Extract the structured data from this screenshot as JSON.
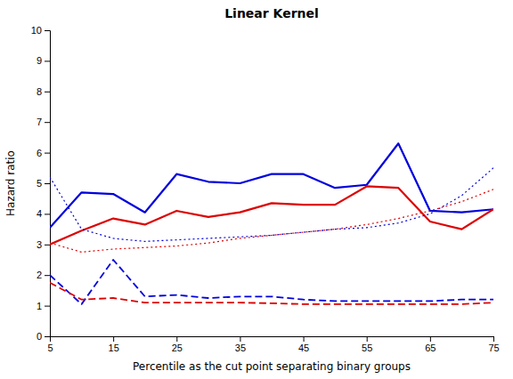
{
  "chart_data": {
    "type": "line",
    "title": "Linear Kernel",
    "xlabel": "Percentile as the cut point separating binary groups",
    "ylabel": "Hazard ratio",
    "xlim": [
      5,
      75
    ],
    "ylim": [
      0,
      10
    ],
    "xticks": [
      5,
      15,
      25,
      35,
      45,
      55,
      65,
      75
    ],
    "yticks": [
      0,
      1,
      2,
      3,
      4,
      5,
      6,
      7,
      8,
      9,
      10
    ],
    "grid": false,
    "x": [
      5,
      10,
      15,
      20,
      25,
      30,
      35,
      40,
      45,
      50,
      55,
      60,
      65,
      70,
      75
    ],
    "series": [
      {
        "color": "#0000dd",
        "line_style": "solid",
        "values": [
          3.55,
          4.7,
          4.65,
          4.05,
          5.3,
          5.05,
          5.0,
          5.3,
          5.3,
          4.85,
          4.95,
          6.3,
          4.1,
          4.05,
          4.15
        ]
      },
      {
        "color": "#dd0000",
        "line_style": "solid",
        "values": [
          3.0,
          3.45,
          3.85,
          3.65,
          4.1,
          3.9,
          4.05,
          4.35,
          4.3,
          4.3,
          4.9,
          4.85,
          3.75,
          3.5,
          4.15
        ]
      },
      {
        "color": "#0000dd",
        "line_style": "dotted",
        "values": [
          5.2,
          3.5,
          3.2,
          3.1,
          3.15,
          3.2,
          3.25,
          3.3,
          3.4,
          3.5,
          3.55,
          3.7,
          4.0,
          4.6,
          5.5
        ]
      },
      {
        "color": "#dd0000",
        "line_style": "dotted",
        "values": [
          3.05,
          2.75,
          2.85,
          2.9,
          2.95,
          3.05,
          3.2,
          3.3,
          3.4,
          3.5,
          3.65,
          3.85,
          4.1,
          4.4,
          4.8
        ]
      },
      {
        "color": "#0000dd",
        "line_style": "dashed",
        "values": [
          2.0,
          1.05,
          2.5,
          1.3,
          1.35,
          1.25,
          1.3,
          1.3,
          1.2,
          1.15,
          1.15,
          1.15,
          1.15,
          1.2,
          1.2
        ]
      },
      {
        "color": "#dd0000",
        "line_style": "dashed",
        "values": [
          1.75,
          1.2,
          1.25,
          1.1,
          1.1,
          1.1,
          1.1,
          1.08,
          1.05,
          1.05,
          1.05,
          1.05,
          1.05,
          1.05,
          1.1
        ]
      }
    ]
  }
}
